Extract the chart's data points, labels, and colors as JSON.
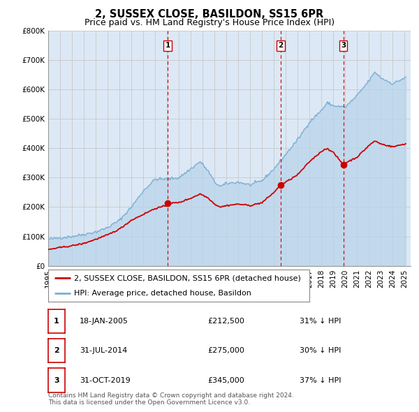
{
  "title": "2, SUSSEX CLOSE, BASILDON, SS15 6PR",
  "subtitle": "Price paid vs. HM Land Registry's House Price Index (HPI)",
  "background_color": "#ffffff",
  "plot_bg_color": "#dce8f5",
  "grid_color": "#c8c8c8",
  "ylim": [
    0,
    800000
  ],
  "yticks": [
    0,
    100000,
    200000,
    300000,
    400000,
    500000,
    600000,
    700000,
    800000
  ],
  "ytick_labels": [
    "£0",
    "£100K",
    "£200K",
    "£300K",
    "£400K",
    "£500K",
    "£600K",
    "£700K",
    "£800K"
  ],
  "xlim_start": 1995.0,
  "xlim_end": 2025.5,
  "sale_dates": [
    2005.046,
    2014.578,
    2019.831
  ],
  "sale_prices": [
    212500,
    275000,
    345000
  ],
  "sale_labels": [
    "1",
    "2",
    "3"
  ],
  "vline_color": "#cc0000",
  "sale_dot_color": "#cc0000",
  "hpi_color": "#7ab0d4",
  "hpi_fill_color": "#b8d4ea",
  "price_color": "#cc0000",
  "legend_entries": [
    "2, SUSSEX CLOSE, BASILDON, SS15 6PR (detached house)",
    "HPI: Average price, detached house, Basildon"
  ],
  "table_rows": [
    [
      "1",
      "18-JAN-2005",
      "£212,500",
      "31% ↓ HPI"
    ],
    [
      "2",
      "31-JUL-2014",
      "£275,000",
      "30% ↓ HPI"
    ],
    [
      "3",
      "31-OCT-2019",
      "£345,000",
      "37% ↓ HPI"
    ]
  ],
  "footnote": "Contains HM Land Registry data © Crown copyright and database right 2024.\nThis data is licensed under the Open Government Licence v3.0.",
  "title_fontsize": 10.5,
  "subtitle_fontsize": 9,
  "tick_fontsize": 7.5,
  "legend_fontsize": 8,
  "table_fontsize": 8,
  "footnote_fontsize": 6.5,
  "hpi_anchors_t": [
    1995.0,
    1996.0,
    1997.0,
    1998.0,
    1999.0,
    2000.0,
    2001.0,
    2002.0,
    2003.0,
    2004.0,
    2005.0,
    2006.0,
    2007.0,
    2007.8,
    2008.5,
    2009.0,
    2009.5,
    2010.0,
    2011.0,
    2012.0,
    2013.0,
    2014.0,
    2015.0,
    2016.0,
    2017.0,
    2018.0,
    2018.5,
    2019.0,
    2020.0,
    2021.0,
    2022.0,
    2022.5,
    2023.0,
    2024.0,
    2025.0
  ],
  "hpi_anchors_v": [
    90000,
    95000,
    100000,
    107000,
    115000,
    130000,
    155000,
    200000,
    255000,
    295000,
    295000,
    300000,
    330000,
    355000,
    320000,
    285000,
    270000,
    280000,
    285000,
    275000,
    290000,
    330000,
    380000,
    430000,
    490000,
    530000,
    555000,
    545000,
    540000,
    580000,
    630000,
    660000,
    640000,
    620000,
    640000
  ],
  "price_anchors_t": [
    1995.0,
    1996.0,
    1997.0,
    1998.0,
    1999.0,
    2000.0,
    2001.0,
    2002.0,
    2003.0,
    2004.0,
    2005.0,
    2005.046,
    2006.0,
    2007.0,
    2007.8,
    2008.5,
    2009.0,
    2009.5,
    2010.0,
    2011.0,
    2012.0,
    2013.0,
    2014.0,
    2014.578,
    2015.0,
    2016.0,
    2017.0,
    2018.0,
    2018.5,
    2019.0,
    2019.831,
    2020.0,
    2021.0,
    2022.0,
    2022.5,
    2023.0,
    2024.0,
    2025.0
  ],
  "price_anchors_v": [
    55000,
    62000,
    68000,
    76000,
    90000,
    105000,
    125000,
    155000,
    175000,
    195000,
    205000,
    212500,
    215000,
    230000,
    245000,
    230000,
    210000,
    200000,
    205000,
    210000,
    205000,
    215000,
    250000,
    275000,
    285000,
    310000,
    355000,
    390000,
    400000,
    385000,
    345000,
    350000,
    370000,
    410000,
    425000,
    415000,
    405000,
    415000
  ]
}
